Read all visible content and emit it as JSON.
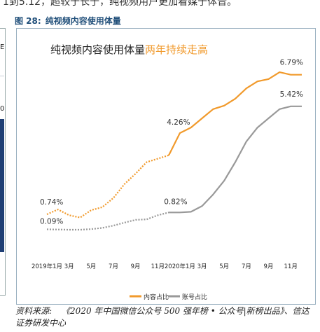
{
  "page": {
    "top_cut_text": "1到5.12，超较于长于，纯视频用户更加看媒于体音。",
    "figure_label": "图 28:",
    "figure_title": "纯视频内容使用体量",
    "left_fragment_top": "E",
    "left_fragment_mid": "0",
    "source_label": "资料来源:",
    "source_text": "《2020 年中国微信公众号 500 强年榜 • 公众号|新榜出品》、信达证券研发中心"
  },
  "chart_data": {
    "type": "line",
    "title": "纯视频内容使用体量",
    "title_highlight": "两年持续走高",
    "x_ticks": [
      "2019年1月",
      "3月",
      "5月",
      "7月",
      "9月",
      "11月",
      "2020年1月",
      "3月",
      "5月",
      "7月",
      "9月",
      "11月"
    ],
    "xlabel": "",
    "ylabel": "",
    "grid": false,
    "legend_position": "bottom",
    "annotations": [
      "0.74%",
      "4.26%",
      "6.79%",
      "0.09%",
      "0.82%",
      "5.42%"
    ],
    "series": [
      {
        "name": "内容占比",
        "color": "#f19a2c",
        "style": "dotted-2019-solid-2020",
        "values": [
          0.74,
          0.95,
          0.7,
          0.6,
          0.92,
          1.05,
          1.45,
          2.05,
          2.5,
          3.0,
          3.15,
          3.3,
          4.26,
          4.5,
          4.9,
          5.3,
          5.45,
          5.75,
          6.2,
          6.5,
          6.6,
          6.9,
          6.79,
          6.79
        ]
      },
      {
        "name": "账号占比",
        "color": "#999999",
        "style": "dotted-2019-solid-2020",
        "values": [
          0.09,
          0.08,
          0.07,
          0.07,
          0.1,
          0.15,
          0.25,
          0.38,
          0.5,
          0.52,
          0.7,
          0.82,
          0.82,
          0.85,
          1.1,
          1.6,
          2.2,
          3.0,
          3.9,
          4.5,
          4.9,
          5.3,
          5.42,
          5.42
        ]
      }
    ],
    "ylim": [
      -0.9,
      7.6
    ],
    "x_count": 24
  }
}
